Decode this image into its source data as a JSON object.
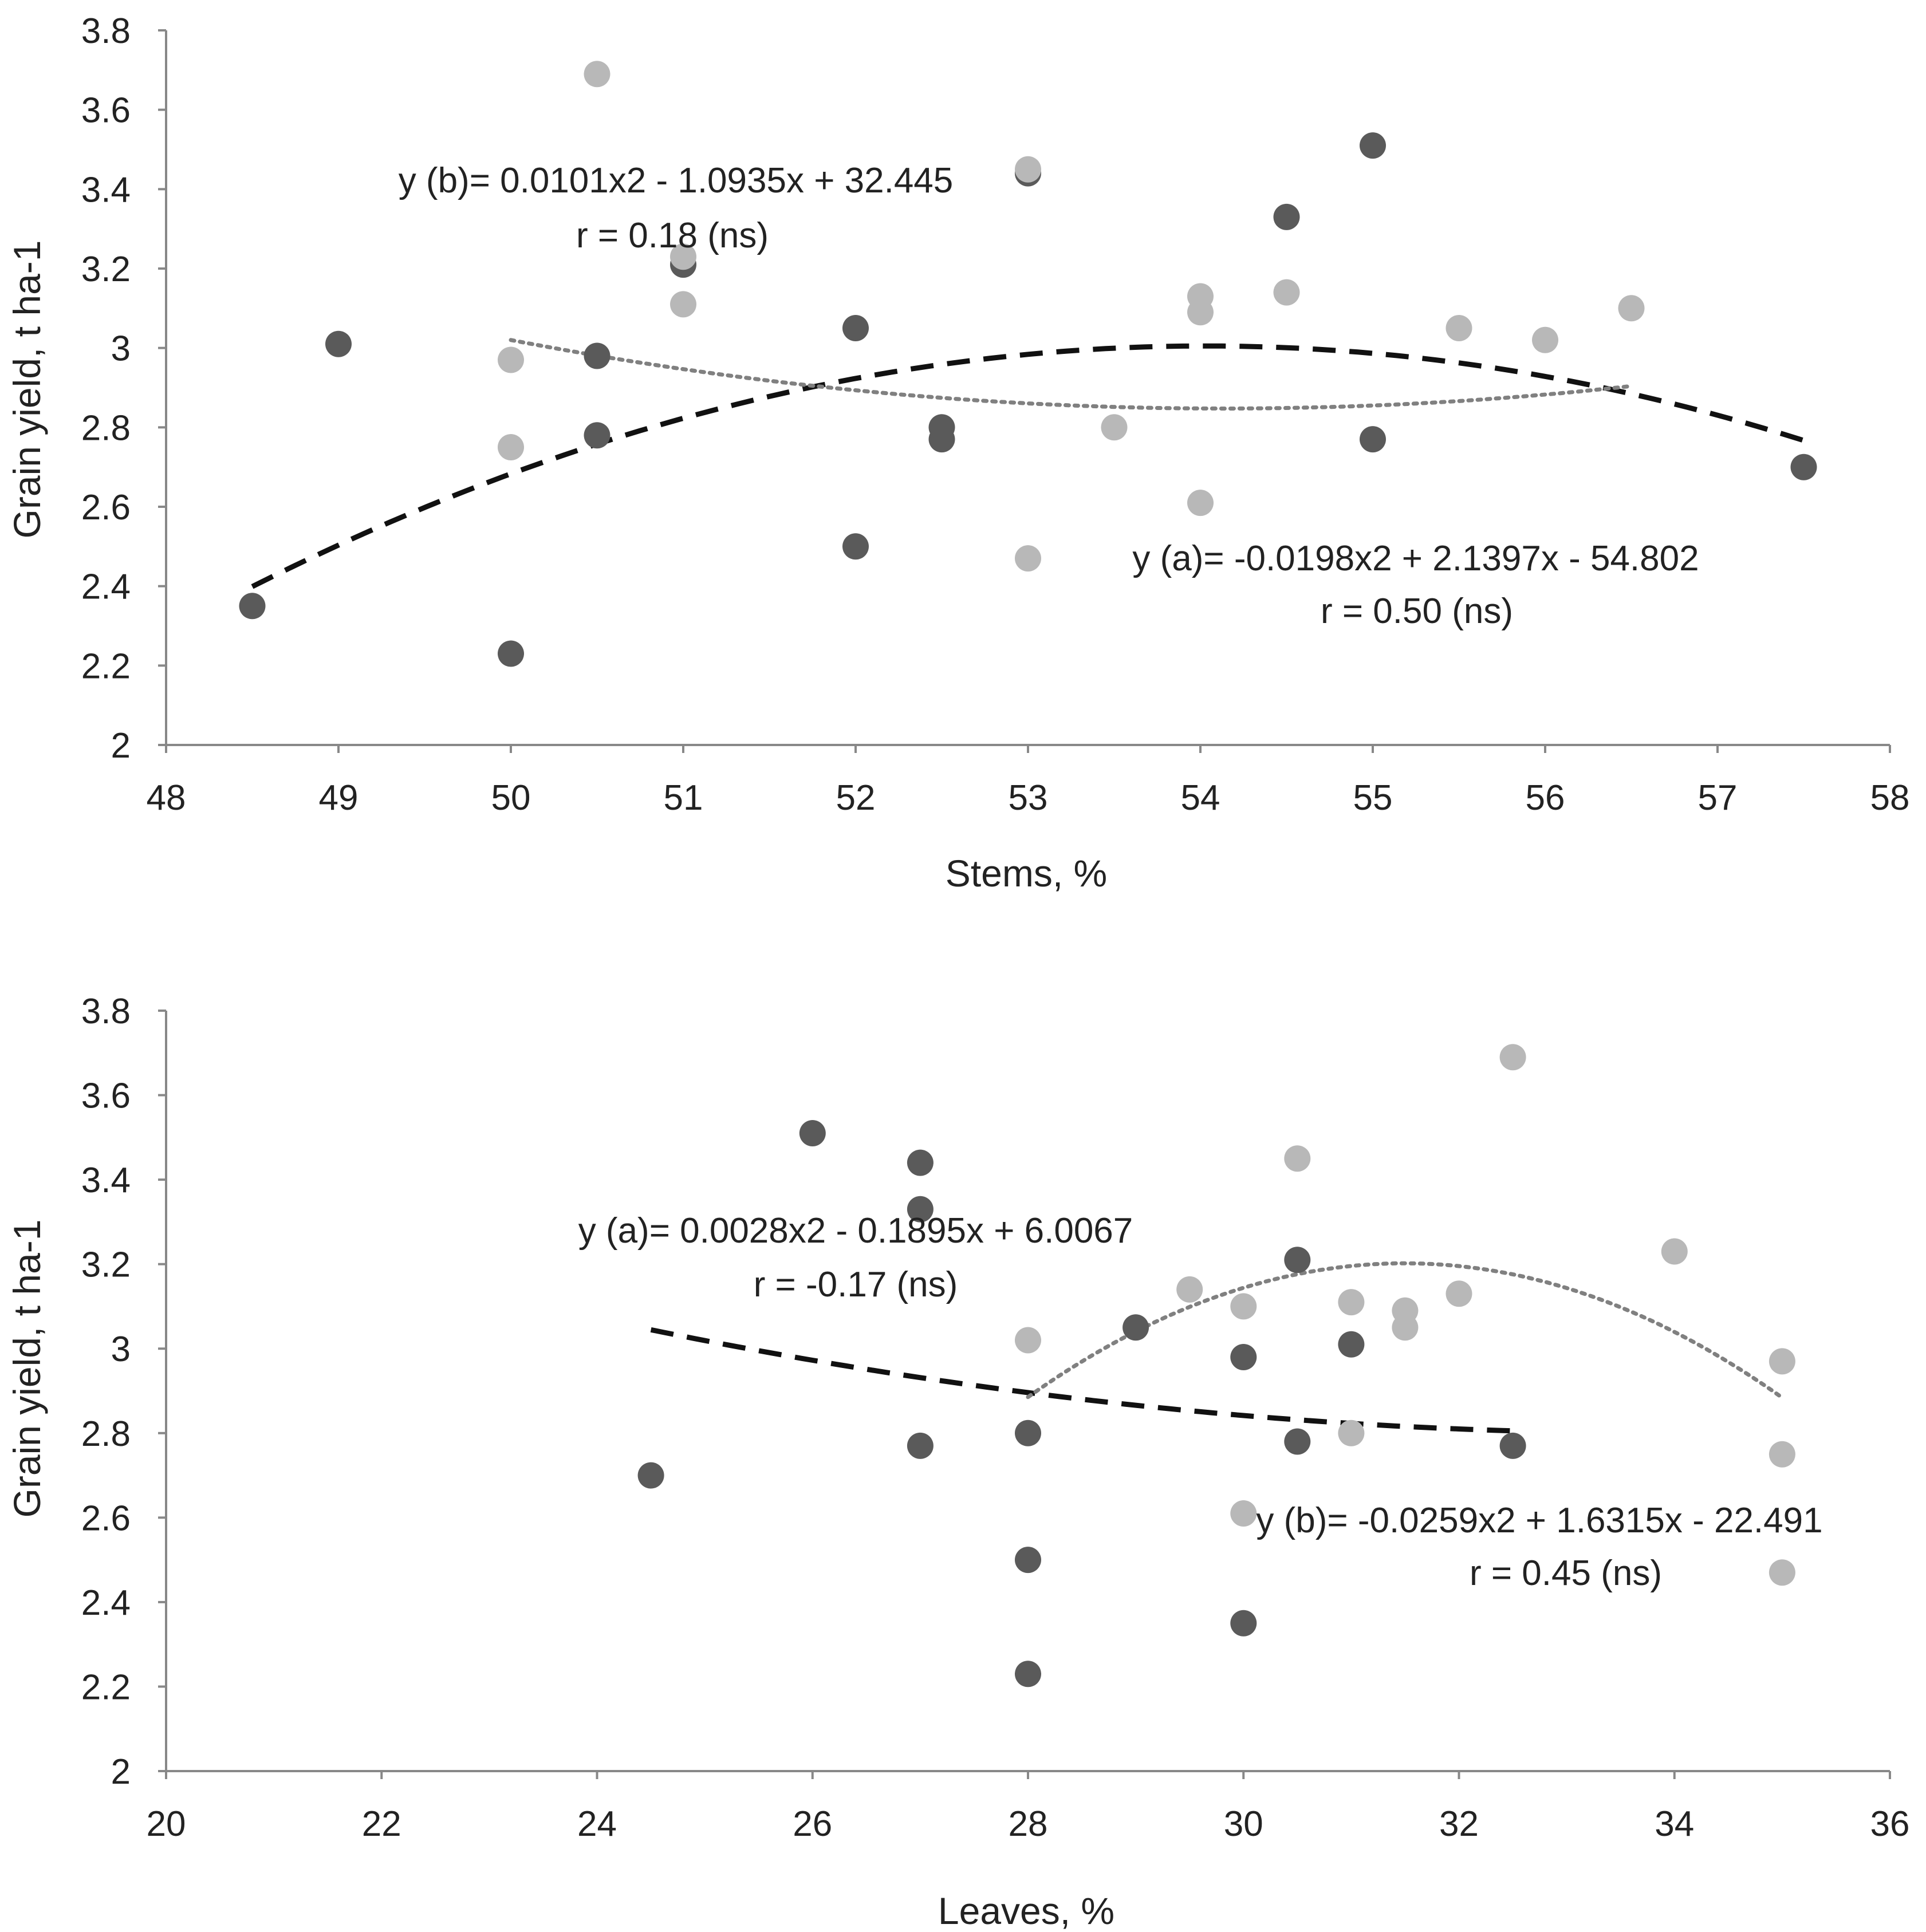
{
  "colors": {
    "series_a": "#5a5a5a",
    "series_b": "#b8b8b8",
    "trend_a": "#111111",
    "trend_b": "#808080",
    "axis": "#888888"
  },
  "chart_data": [
    {
      "id": "stems",
      "type": "scatter",
      "xlabel": "Stems, %",
      "ylabel": "Grain yield, t ha-1",
      "xlim": [
        48,
        58
      ],
      "ylim": [
        2,
        3.8
      ],
      "xticks": [
        48,
        49,
        50,
        51,
        52,
        53,
        54,
        55,
        56,
        57,
        58
      ],
      "yticks": [
        2,
        2.2,
        2.4,
        2.6,
        2.8,
        3,
        3.2,
        3.4,
        3.6,
        3.8
      ],
      "grid": false,
      "series": [
        {
          "name": "a",
          "points": [
            [
              48.5,
              2.35
            ],
            [
              49,
              3.01
            ],
            [
              50,
              2.23
            ],
            [
              50.5,
              2.98
            ],
            [
              50.5,
              2.78
            ],
            [
              51,
              3.21
            ],
            [
              52,
              3.05
            ],
            [
              52,
              2.5
            ],
            [
              52.5,
              2.8
            ],
            [
              52.5,
              2.77
            ],
            [
              53,
              3.44
            ],
            [
              54.5,
              3.33
            ],
            [
              55,
              3.51
            ],
            [
              55,
              2.77
            ],
            [
              57.5,
              2.7
            ]
          ]
        },
        {
          "name": "b",
          "points": [
            [
              50,
              2.97
            ],
            [
              50,
              2.75
            ],
            [
              50.5,
              3.69
            ],
            [
              51,
              3.23
            ],
            [
              51,
              3.11
            ],
            [
              53,
              3.45
            ],
            [
              53,
              2.47
            ],
            [
              53.5,
              2.8
            ],
            [
              54,
              3.13
            ],
            [
              54,
              3.09
            ],
            [
              54,
              2.61
            ],
            [
              54.5,
              3.14
            ],
            [
              55.5,
              3.05
            ],
            [
              56,
              3.02
            ],
            [
              56.5,
              3.1
            ]
          ]
        }
      ],
      "trendlines": [
        {
          "series": "a",
          "style": "dashed",
          "coef": [
            -0.0198,
            2.1397,
            -54.802
          ],
          "xrange": [
            48.5,
            57.5
          ]
        },
        {
          "series": "b",
          "style": "dotted",
          "coef": [
            0.0101,
            -1.0935,
            32.445
          ],
          "xrange": [
            50,
            56.5
          ]
        }
      ],
      "annotations": [
        {
          "id": "eq_b",
          "line1": "y (b)= 0.0101x2 - 1.0935x + 32.445",
          "line2": "r = 0.18 (ns)"
        },
        {
          "id": "eq_a",
          "line1": "y (a)= -0.0198x2 + 2.1397x - 54.802",
          "line2": "r = 0.50 (ns)"
        }
      ]
    },
    {
      "id": "leaves",
      "type": "scatter",
      "xlabel": "Leaves, %",
      "ylabel": "Grain yield, t ha-1",
      "xlim": [
        20,
        36
      ],
      "ylim": [
        2,
        3.8
      ],
      "xticks": [
        20,
        22,
        24,
        26,
        28,
        30,
        32,
        34,
        36
      ],
      "yticks": [
        2,
        2.2,
        2.4,
        2.6,
        2.8,
        3,
        3.2,
        3.4,
        3.6,
        3.8
      ],
      "grid": false,
      "series": [
        {
          "name": "a",
          "points": [
            [
              24.5,
              2.7
            ],
            [
              26,
              3.51
            ],
            [
              27,
              3.44
            ],
            [
              27,
              3.33
            ],
            [
              27,
              2.77
            ],
            [
              28,
              2.8
            ],
            [
              28,
              2.5
            ],
            [
              28,
              2.23
            ],
            [
              29,
              3.05
            ],
            [
              30,
              2.98
            ],
            [
              30,
              2.35
            ],
            [
              30.5,
              3.21
            ],
            [
              30.5,
              2.78
            ],
            [
              31,
              3.01
            ],
            [
              32.5,
              2.77
            ]
          ]
        },
        {
          "name": "b",
          "points": [
            [
              28,
              3.02
            ],
            [
              29.5,
              3.14
            ],
            [
              30,
              3.1
            ],
            [
              30,
              2.61
            ],
            [
              30.5,
              3.45
            ],
            [
              31,
              3.11
            ],
            [
              31,
              2.8
            ],
            [
              31.5,
              3.09
            ],
            [
              31.5,
              3.05
            ],
            [
              32,
              3.13
            ],
            [
              32.5,
              3.69
            ],
            [
              34,
              3.23
            ],
            [
              35,
              2.97
            ],
            [
              35,
              2.75
            ],
            [
              35,
              2.47
            ]
          ]
        }
      ],
      "trendlines": [
        {
          "series": "a",
          "style": "dashed",
          "coef": [
            0.0028,
            -0.1895,
            6.0067
          ],
          "xrange": [
            24.5,
            32.5
          ]
        },
        {
          "series": "b",
          "style": "dotted",
          "coef": [
            -0.0259,
            1.6315,
            -22.491
          ],
          "xrange": [
            28,
            35
          ]
        }
      ],
      "annotations": [
        {
          "id": "eq_a",
          "line1": "y (a)= 0.0028x2 - 0.1895x + 6.0067",
          "line2": "r = -0.17 (ns)"
        },
        {
          "id": "eq_b",
          "line1": "y (b)= -0.0259x2 + 1.6315x - 22.491",
          "line2": "r = 0.45 (ns)"
        }
      ]
    }
  ]
}
